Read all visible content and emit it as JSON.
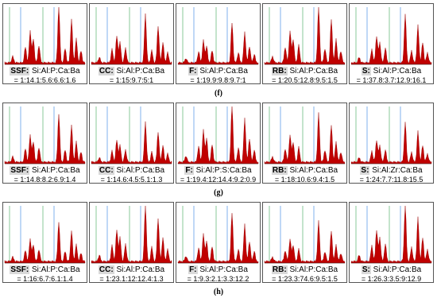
{
  "rows": [
    {
      "label": "(f)",
      "panels": [
        {
          "sample": "SSF:",
          "elements": "Si:Al:P:Ca:Ba",
          "ratio": "= 1:14.1:5.6:6.6:1.6"
        },
        {
          "sample": "CC:",
          "elements": "Si:Al:P:Ca:Ba",
          "ratio": "= 1:15:9.7:5:1"
        },
        {
          "sample": "F:",
          "elements": "Si:Al:P:Ca:Ba",
          "ratio": "= 1:19.9:9.8:9.7:1"
        },
        {
          "sample": "RB:",
          "elements": "Si:Al:P:Ca:Ba",
          "ratio": "= 1:20.5:12.8:9.5:1.5"
        },
        {
          "sample": "S:",
          "elements": "Si:Al:P:Ca:Ba",
          "ratio": "= 1:37.8:3.7:12.9:16.1"
        }
      ]
    },
    {
      "label": "(g)",
      "panels": [
        {
          "sample": "SSF:",
          "elements": "Si:Al:P:Ca:Ba",
          "ratio": "= 1:14.8:8.2:6.9:1.4"
        },
        {
          "sample": "CC:",
          "elements": "Si:Al:P:Ca:Ba",
          "ratio": "= 1:14.6:4.5:5.1:1.3"
        },
        {
          "sample": "F:",
          "elements": "Si:Al:P:S:Ca:Ba",
          "ratio": "= 1:19.4:12:14.4:9.2:0.9"
        },
        {
          "sample": "RB:",
          "elements": "Si:Al:P:Ca:Ba",
          "ratio": "= 1:18:10.6:9.4:1.5"
        },
        {
          "sample": "S:",
          "elements": "Si:Al:Zr:Ca:Ba",
          "ratio": "= 1:24:7.7:11.8:15.5"
        }
      ]
    },
    {
      "label": "(h)",
      "panels": [
        {
          "sample": "SSF:",
          "elements": "Si:Al:P:Ca:Ba",
          "ratio": "= 1:16:6.7:6.1:1.4"
        },
        {
          "sample": "CC:",
          "elements": "Si:Al:P:Ca:Ba",
          "ratio": "= 1:23.1:12:12.4:1.3"
        },
        {
          "sample": "F:",
          "elements": "Si:Al:P:Ca:Ba",
          "ratio": "= 1:9.3:2.1:3.3:12.2"
        },
        {
          "sample": "RB:",
          "elements": "Si:Al:P:Ca:Ba",
          "ratio": "= 1:23.3:74.6:9.5:1.5"
        },
        {
          "sample": "S:",
          "elements": "Si:Al:P:Ca:Ba",
          "ratio": "= 1:26.3:3.5:9:12.9"
        }
      ]
    }
  ]
}
